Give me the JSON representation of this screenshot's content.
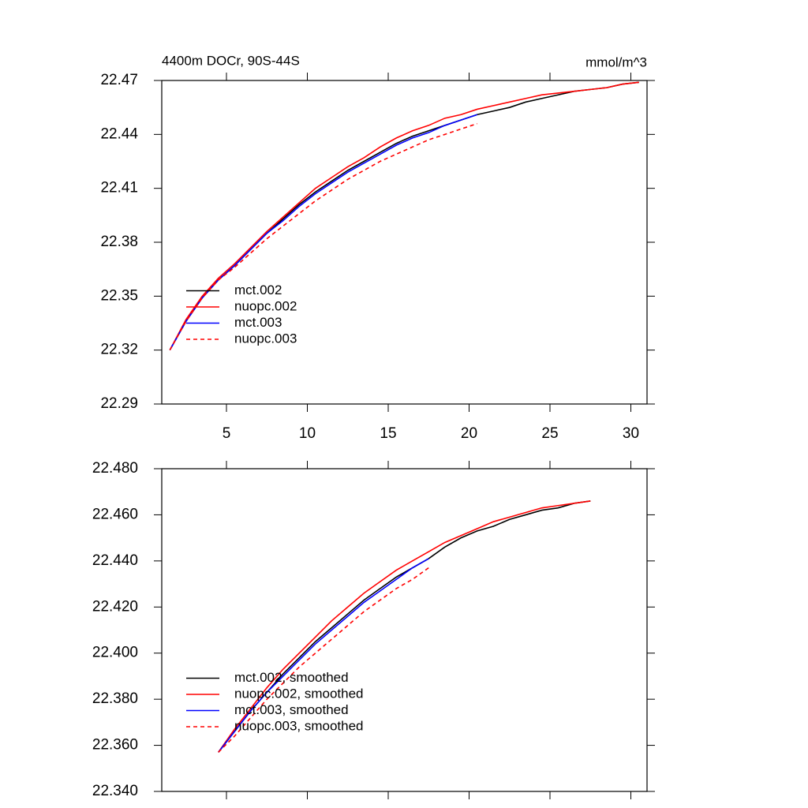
{
  "chart_data": [
    {
      "type": "line",
      "title": "4400m DOCr, 90S-44S",
      "subtitle": "mmol/m^3",
      "x": [
        1.5,
        2.5,
        3.5,
        4.5,
        5.5,
        6.5,
        7.5,
        8.5,
        9.5,
        10.5,
        11.5,
        12.5,
        13.5,
        14.5,
        15.5,
        16.5,
        17.5,
        18.5,
        19.5,
        20.5,
        21.5,
        22.5,
        23.5,
        24.5,
        25.5,
        26.5,
        27.5,
        28.5,
        29.5,
        30.5
      ],
      "series": [
        {
          "name": "mct.002",
          "color": "#000000",
          "linestyle": "solid",
          "values": [
            22.32,
            22.336,
            22.349,
            22.359,
            22.367,
            22.376,
            22.385,
            22.393,
            22.401,
            22.408,
            22.414,
            22.42,
            22.425,
            22.43,
            22.435,
            22.439,
            22.442,
            22.445,
            22.448,
            22.451,
            22.453,
            22.455,
            22.458,
            22.46,
            22.462,
            22.464,
            22.465,
            22.466,
            22.468,
            22.469
          ]
        },
        {
          "name": "nuopc.002",
          "color": "#ff0000",
          "linestyle": "solid",
          "values": [
            22.32,
            22.337,
            22.35,
            22.36,
            22.368,
            22.377,
            22.386,
            22.394,
            22.402,
            22.41,
            22.416,
            22.422,
            22.427,
            22.433,
            22.438,
            22.442,
            22.445,
            22.449,
            22.451,
            22.454,
            22.456,
            22.458,
            22.46,
            22.462,
            22.463,
            22.464,
            22.465,
            22.466,
            22.468,
            22.469
          ]
        },
        {
          "name": "mct.003",
          "color": "#0000ff",
          "linestyle": "solid",
          "values": [
            22.32,
            22.336,
            22.349,
            22.359,
            22.367,
            22.376,
            22.385,
            22.392,
            22.4,
            22.407,
            22.413,
            22.419,
            22.424,
            22.429,
            22.434,
            22.438,
            22.441,
            22.445,
            22.448,
            22.451,
            null,
            null,
            null,
            null,
            null,
            null,
            null,
            null,
            null,
            null
          ]
        },
        {
          "name": "nuopc.003",
          "color": "#ff0000",
          "linestyle": "dashed",
          "values": [
            22.32,
            22.336,
            22.349,
            22.359,
            22.366,
            22.374,
            22.382,
            22.389,
            22.396,
            22.403,
            22.409,
            22.415,
            22.42,
            22.425,
            22.429,
            22.433,
            22.437,
            22.44,
            22.443,
            22.446,
            null,
            null,
            null,
            null,
            null,
            null,
            null,
            null,
            null,
            null
          ]
        }
      ],
      "xlim": [
        1,
        31
      ],
      "xticks": [
        5,
        10,
        15,
        20,
        25,
        30
      ],
      "ylim": [
        22.29,
        22.47
      ],
      "yticks": [
        22.29,
        22.32,
        22.35,
        22.38,
        22.41,
        22.44,
        22.47
      ],
      "legend": "lower left"
    },
    {
      "type": "line",
      "x": [
        4.5,
        5.5,
        6.5,
        7.5,
        8.5,
        9.5,
        10.5,
        11.5,
        12.5,
        13.5,
        14.5,
        15.5,
        16.5,
        17.5,
        18.5,
        19.5,
        20.5,
        21.5,
        22.5,
        23.5,
        24.5,
        25.5,
        26.5,
        27.5
      ],
      "series": [
        {
          "name": "mct.002, smoothed",
          "color": "#000000",
          "linestyle": "solid",
          "values": [
            22.357,
            22.366,
            22.375,
            22.383,
            22.391,
            22.398,
            22.405,
            22.411,
            22.417,
            22.423,
            22.428,
            22.433,
            22.437,
            22.441,
            22.446,
            22.45,
            22.453,
            22.455,
            22.458,
            22.46,
            22.462,
            22.463,
            22.465,
            22.466
          ]
        },
        {
          "name": "nuopc.002, smoothed",
          "color": "#ff0000",
          "linestyle": "solid",
          "values": [
            22.357,
            22.367,
            22.376,
            22.385,
            22.393,
            22.4,
            22.407,
            22.414,
            22.42,
            22.426,
            22.431,
            22.436,
            22.44,
            22.444,
            22.448,
            22.451,
            22.454,
            22.457,
            22.459,
            22.461,
            22.463,
            22.464,
            22.465,
            22.466
          ]
        },
        {
          "name": "mct.003, smoothed",
          "color": "#0000ff",
          "linestyle": "solid",
          "values": [
            22.357,
            22.366,
            22.375,
            22.383,
            22.39,
            22.397,
            22.404,
            22.41,
            22.416,
            22.422,
            22.427,
            22.432,
            22.437,
            22.441,
            null,
            null,
            null,
            null,
            null,
            null,
            null,
            null,
            null,
            null
          ]
        },
        {
          "name": "nuopc.003, smoothed",
          "color": "#ff0000",
          "linestyle": "dashed",
          "values": [
            22.357,
            22.364,
            22.372,
            22.38,
            22.387,
            22.394,
            22.4,
            22.406,
            22.412,
            22.418,
            22.423,
            22.428,
            22.432,
            22.437,
            null,
            null,
            null,
            null,
            null,
            null,
            null,
            null,
            null,
            null
          ]
        }
      ],
      "xlim": [
        1,
        31
      ],
      "xticks": [
        5,
        10,
        15,
        20,
        25,
        30
      ],
      "ylim": [
        22.34,
        22.48
      ],
      "yticks": [
        {
          "value": 22.34,
          "label": "22.340"
        },
        {
          "value": 22.36,
          "label": "22.360"
        },
        {
          "value": 22.38,
          "label": "22.380"
        },
        {
          "value": 22.4,
          "label": "22.400"
        },
        {
          "value": 22.42,
          "label": "22.420"
        },
        {
          "value": 22.44,
          "label": "22.440"
        },
        {
          "value": 22.46,
          "label": "22.460"
        },
        {
          "value": 22.48,
          "label": "22.480"
        }
      ],
      "legend": "lower left"
    }
  ]
}
